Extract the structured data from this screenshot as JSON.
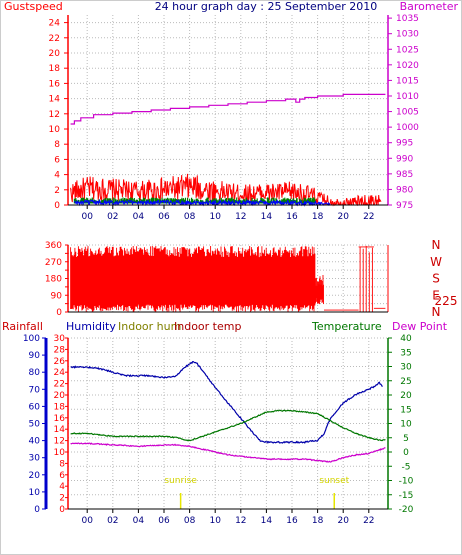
{
  "title": "24 hour graph day : 25 September 2010",
  "colors": {
    "gust": "#ff0000",
    "wind": "#0000ff",
    "wind_green": "#008000",
    "baro": "#cc00cc",
    "winddir": "#ff0000",
    "rain": "#ff0000",
    "humidity": "#0000aa",
    "indoor_hum": "#808000",
    "indoor_temp": "#aa0000",
    "temperature": "#007700",
    "dew": "#cc00cc",
    "sun": "#e6e600"
  },
  "x_ticks": [
    "00",
    "02",
    "04",
    "06",
    "08",
    "10",
    "12",
    "14",
    "16",
    "18",
    "20",
    "22"
  ],
  "chart_data": [
    {
      "type": "line",
      "panel": "wind-baro",
      "labels": {
        "left": "Gustspeed",
        "right": "Barometer"
      },
      "left_axis": {
        "ylim": [
          0,
          25
        ],
        "ticks": [
          0,
          2,
          4,
          6,
          8,
          10,
          12,
          14,
          16,
          18,
          20,
          22,
          24
        ]
      },
      "right_axis": {
        "ylim": [
          975,
          1036
        ],
        "ticks": [
          975,
          980,
          985,
          990,
          995,
          1000,
          1005,
          1010,
          1015,
          1020,
          1025,
          1030,
          1035
        ]
      },
      "x_range": [
        -1.5,
        23.5
      ],
      "series": [
        {
          "key": "gust",
          "axis": "left",
          "style": "spiky",
          "x": [
            -1.3,
            0.0,
            2.0,
            4.0,
            6.0,
            8.0,
            10.0,
            12.0,
            14.0,
            16.0,
            17.5,
            18.5,
            19.0,
            20.0,
            21.0,
            22.0,
            23.0
          ],
          "base": [
            1.6,
            2.2,
            2.0,
            1.8,
            2.0,
            2.4,
            1.8,
            1.5,
            1.6,
            1.7,
            1.3,
            0.7,
            0.5,
            0.3,
            0.4,
            0.4,
            0.6
          ],
          "amp": [
            1.4,
            1.6,
            1.5,
            1.4,
            1.6,
            1.8,
            1.5,
            1.2,
            1.3,
            1.4,
            1.2,
            0.8,
            0.6,
            0.5,
            0.8,
            1.0,
            1.0
          ]
        },
        {
          "key": "wind_green",
          "axis": "left",
          "style": "band",
          "x": [
            -1.0,
            17.8
          ],
          "y": [
            0.2,
            1.0
          ]
        },
        {
          "key": "wind",
          "axis": "left",
          "style": "spiky",
          "x": [
            -1.0,
            2.0,
            6.0,
            10.0,
            14.0,
            17.8,
            19.0
          ],
          "base": [
            0.3,
            0.35,
            0.35,
            0.3,
            0.3,
            0.25,
            0.1
          ],
          "amp": [
            0.3,
            0.3,
            0.3,
            0.3,
            0.3,
            0.3,
            0.1
          ]
        },
        {
          "key": "baro",
          "axis": "right",
          "style": "step",
          "x": [
            -1.3,
            -1.0,
            -0.5,
            0.5,
            2.0,
            3.5,
            5.0,
            6.5,
            8.0,
            9.5,
            11.0,
            12.5,
            14.0,
            15.5,
            16.3,
            16.6,
            17.0,
            18.0,
            20.0,
            23.3
          ],
          "y": [
            1001,
            1002,
            1003,
            1004,
            1004.5,
            1005,
            1005.5,
            1006,
            1006.5,
            1007,
            1007.5,
            1008,
            1008.5,
            1009,
            1008,
            1009,
            1009.5,
            1010,
            1010.5,
            1010.5
          ]
        }
      ]
    },
    {
      "type": "scatter",
      "panel": "wind-direction",
      "left_axis": {
        "ylim": [
          0,
          360
        ],
        "ticks": [
          0,
          45,
          90,
          135,
          180,
          225,
          270,
          315,
          360
        ]
      },
      "right_labels": [
        "N",
        "W",
        "S",
        "E",
        "N"
      ],
      "current_value": "225",
      "x_range": [
        -1.5,
        23.5
      ],
      "series": [
        {
          "key": "winddir",
          "style": "bars",
          "segments": [
            {
              "x_start": -1.3,
              "x_end": 17.8,
              "density": 2.3,
              "low": 0,
              "high": 355
            },
            {
              "x_start": 17.8,
              "x_end": 18.5,
              "density": 4,
              "low": 40,
              "high": 200
            },
            {
              "x_start": 18.5,
              "x_end": 21.2,
              "value": 10
            },
            {
              "x_start": 21.2,
              "x_end": 22.4,
              "bars": [
                350,
                340,
                355,
                320,
                345
              ]
            },
            {
              "x_start": 22.4,
              "x_end": 23.3,
              "value": 20
            }
          ]
        }
      ]
    },
    {
      "type": "line",
      "panel": "temp-hum",
      "labels": {
        "rainfall": "Rainfall",
        "humidity": "Humidity",
        "indoor_hum": "Indoor hum",
        "indoor_temp": "Indoor temp",
        "temperature": "Temperature",
        "dew": "Dew Point"
      },
      "left_axis_humidity": {
        "ylim": [
          0,
          100
        ],
        "ticks": [
          0,
          10,
          20,
          30,
          40,
          50,
          60,
          70,
          80,
          90,
          100
        ]
      },
      "left_axis_rain": {
        "ylim": [
          0,
          30
        ],
        "ticks": [
          0,
          2,
          4,
          6,
          8,
          10,
          12,
          14,
          16,
          18,
          20,
          22,
          24,
          26,
          28,
          30
        ]
      },
      "right_axis_temp": {
        "ylim": [
          -20,
          40
        ],
        "ticks": [
          -20,
          -15,
          -10,
          -5,
          0,
          5,
          10,
          15,
          20,
          25,
          30,
          35,
          40
        ]
      },
      "x_range": [
        -1.5,
        23.5
      ],
      "sunrise": {
        "label": "sunrise",
        "x": 7.3
      },
      "sunset": {
        "label": "sunset",
        "x": 19.3
      },
      "series": [
        {
          "key": "humidity",
          "axis": "humidity",
          "x": [
            -1.3,
            0,
            1,
            2,
            3,
            4,
            5,
            5.5,
            6,
            6.5,
            7,
            7.5,
            8,
            8.3,
            8.6,
            9,
            9.5,
            10,
            11,
            12,
            13,
            13.5,
            14,
            15,
            16,
            17,
            17.5,
            18,
            18.5,
            19,
            20,
            21,
            22,
            22.5,
            22.8,
            23.1
          ],
          "y": [
            83,
            83,
            82,
            80,
            78,
            78,
            78,
            77,
            77,
            77,
            78,
            82,
            85,
            86,
            85,
            81,
            76,
            71,
            62,
            53,
            44,
            40,
            39,
            39,
            39,
            39,
            40,
            40,
            44,
            53,
            62,
            67,
            70,
            72,
            74,
            71
          ]
        },
        {
          "key": "temperature",
          "axis": "temp",
          "x": [
            -1.3,
            0,
            2,
            4,
            6,
            7,
            8,
            9,
            10,
            11,
            12,
            13,
            14,
            15,
            16,
            17,
            18,
            19,
            20,
            21,
            22,
            23,
            23.3
          ],
          "y": [
            6.5,
            6.5,
            5.5,
            5.5,
            5.5,
            5,
            4,
            5.5,
            7,
            8.5,
            10,
            12,
            14,
            14.5,
            14.5,
            14,
            13.5,
            11,
            8.5,
            6.5,
            5,
            4,
            4.5
          ]
        },
        {
          "key": "dew",
          "axis": "temp",
          "x": [
            -1.3,
            0,
            2,
            4,
            6,
            7,
            8,
            9,
            10,
            11,
            12,
            13,
            14,
            15,
            16,
            17,
            18,
            19,
            20,
            21,
            22,
            23,
            23.3
          ],
          "y": [
            3,
            3,
            2.5,
            2,
            2.5,
            2.5,
            2,
            1,
            0,
            -1,
            -1.5,
            -2,
            -2.5,
            -2.5,
            -2.5,
            -2.5,
            -3,
            -3.5,
            -2,
            -1,
            -0.5,
            1,
            1.5
          ]
        }
      ]
    }
  ]
}
